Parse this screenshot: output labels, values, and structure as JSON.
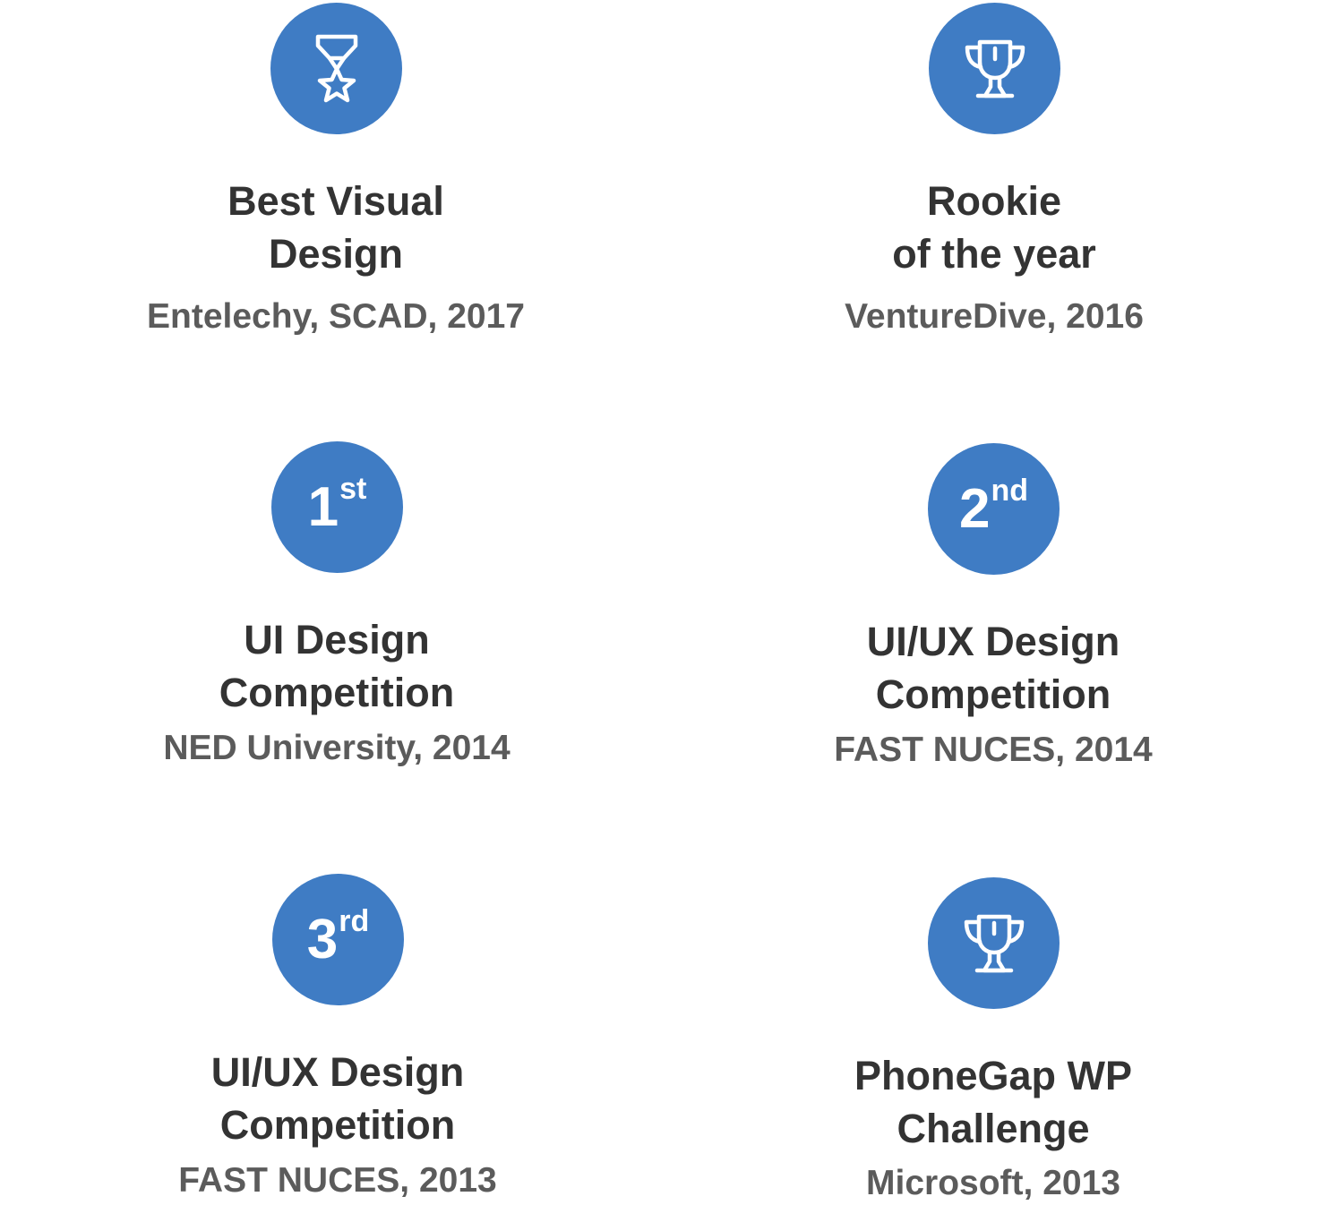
{
  "colors": {
    "badge": "#3f7cc4",
    "title": "#333333",
    "organization": "#5b5b5b"
  },
  "awards": [
    {
      "icon": "medal-star-icon",
      "title_lines": [
        "Best Visual",
        "Design"
      ],
      "organization": "Entelechy, SCAD, 2017"
    },
    {
      "icon": "trophy-icon",
      "title_lines": [
        "Rookie",
        "of the year"
      ],
      "organization": "VentureDive, 2016"
    },
    {
      "icon": "rank-badge",
      "rank": {
        "number": "1",
        "suffix": "st"
      },
      "title_lines": [
        "UI Design",
        "Competition"
      ],
      "organization": "NED University, 2014"
    },
    {
      "icon": "rank-badge",
      "rank": {
        "number": "2",
        "suffix": "nd"
      },
      "title_lines": [
        "UI/UX Design",
        "Competition"
      ],
      "organization": "FAST NUCES, 2014"
    },
    {
      "icon": "rank-badge",
      "rank": {
        "number": "3",
        "suffix": "rd"
      },
      "title_lines": [
        "UI/UX Design",
        "Competition"
      ],
      "organization": "FAST NUCES, 2013"
    },
    {
      "icon": "trophy-icon",
      "title_lines": [
        "PhoneGap WP",
        "Challenge"
      ],
      "organization": "Microsoft, 2013"
    }
  ]
}
